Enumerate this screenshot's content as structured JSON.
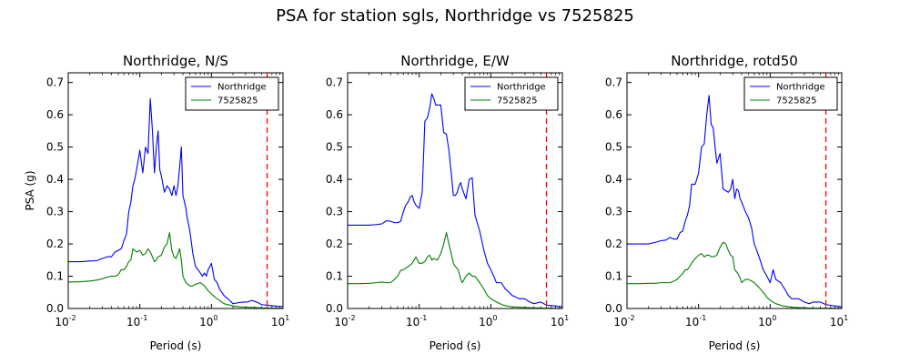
{
  "figure": {
    "title": "PSA for station sgls, Northridge vs 7525825"
  },
  "chart_data": [
    {
      "type": "line",
      "title": "Northridge, N/S",
      "xlabel": "Period (s)",
      "ylabel": "PSA (g)",
      "xscale": "log",
      "xlim": [
        0.01,
        10
      ],
      "ylim": [
        0,
        0.73
      ],
      "xticks": [
        "10",
        "10",
        "10",
        "10"
      ],
      "xtick_exponents": [
        "-2",
        "-1",
        "0",
        "1"
      ],
      "yticks": [
        "0.0",
        "0.1",
        "0.2",
        "0.3",
        "0.4",
        "0.5",
        "0.6",
        "0.7"
      ],
      "legend": "top-right",
      "vline": {
        "x": 6.0,
        "color": "#ff0000",
        "style": "dashed"
      },
      "series": [
        {
          "name": "Northridge",
          "color": "#0000ff",
          "x": [
            0.01,
            0.015,
            0.02,
            0.025,
            0.03,
            0.035,
            0.04,
            0.045,
            0.05,
            0.055,
            0.06,
            0.065,
            0.07,
            0.075,
            0.08,
            0.085,
            0.09,
            0.1,
            0.11,
            0.12,
            0.13,
            0.14,
            0.15,
            0.16,
            0.17,
            0.18,
            0.19,
            0.2,
            0.22,
            0.24,
            0.26,
            0.28,
            0.3,
            0.32,
            0.34,
            0.36,
            0.38,
            0.4,
            0.42,
            0.44,
            0.46,
            0.48,
            0.5,
            0.55,
            0.6,
            0.65,
            0.7,
            0.75,
            0.8,
            0.85,
            0.9,
            0.95,
            1.0,
            1.1,
            1.2,
            1.3,
            1.5,
            1.7,
            2.0,
            2.4,
            2.8,
            3.2,
            3.6,
            4.0,
            4.5,
            5.0,
            6.0,
            7.5,
            10.0
          ],
          "y": [
            0.145,
            0.145,
            0.147,
            0.148,
            0.155,
            0.16,
            0.16,
            0.175,
            0.18,
            0.185,
            0.21,
            0.23,
            0.3,
            0.33,
            0.38,
            0.4,
            0.43,
            0.49,
            0.42,
            0.5,
            0.48,
            0.65,
            0.55,
            0.42,
            0.5,
            0.55,
            0.43,
            0.41,
            0.36,
            0.38,
            0.37,
            0.35,
            0.38,
            0.35,
            0.38,
            0.44,
            0.5,
            0.35,
            0.33,
            0.31,
            0.28,
            0.26,
            0.24,
            0.17,
            0.13,
            0.12,
            0.11,
            0.1,
            0.11,
            0.1,
            0.12,
            0.13,
            0.14,
            0.09,
            0.08,
            0.06,
            0.04,
            0.03,
            0.015,
            0.018,
            0.02,
            0.02,
            0.025,
            0.022,
            0.018,
            0.012,
            0.01,
            0.008,
            0.006
          ]
        },
        {
          "name": "7525825",
          "color": "#008000",
          "x": [
            0.01,
            0.015,
            0.02,
            0.025,
            0.03,
            0.035,
            0.04,
            0.045,
            0.05,
            0.055,
            0.06,
            0.065,
            0.07,
            0.075,
            0.08,
            0.09,
            0.1,
            0.11,
            0.12,
            0.13,
            0.14,
            0.15,
            0.16,
            0.17,
            0.18,
            0.2,
            0.22,
            0.24,
            0.26,
            0.28,
            0.3,
            0.32,
            0.34,
            0.36,
            0.38,
            0.4,
            0.44,
            0.5,
            0.55,
            0.6,
            0.7,
            0.8,
            0.9,
            1.0,
            1.2,
            1.5,
            2.0,
            2.5,
            3.0,
            4.0,
            5.0,
            7.0,
            10.0
          ],
          "y": [
            0.082,
            0.083,
            0.085,
            0.088,
            0.092,
            0.097,
            0.1,
            0.1,
            0.105,
            0.12,
            0.12,
            0.13,
            0.145,
            0.15,
            0.185,
            0.175,
            0.18,
            0.165,
            0.17,
            0.185,
            0.175,
            0.16,
            0.145,
            0.15,
            0.16,
            0.165,
            0.19,
            0.2,
            0.235,
            0.18,
            0.16,
            0.155,
            0.17,
            0.185,
            0.15,
            0.1,
            0.08,
            0.07,
            0.07,
            0.075,
            0.08,
            0.07,
            0.055,
            0.045,
            0.03,
            0.015,
            0.008,
            0.005,
            0.004,
            0.003,
            0.002,
            0.001,
            0.001
          ]
        }
      ]
    },
    {
      "type": "line",
      "title": "Northridge, E/W",
      "xlabel": "Period (s)",
      "ylabel": "",
      "xscale": "log",
      "xlim": [
        0.01,
        10
      ],
      "ylim": [
        0,
        0.73
      ],
      "xticks": [
        "10",
        "10",
        "10",
        "10"
      ],
      "xtick_exponents": [
        "-2",
        "-1",
        "0",
        "1"
      ],
      "yticks": [
        "0.0",
        "0.1",
        "0.2",
        "0.3",
        "0.4",
        "0.5",
        "0.6",
        "0.7"
      ],
      "legend": "top-right",
      "vline": {
        "x": 6.0,
        "color": "#ff0000",
        "style": "dashed"
      },
      "series": [
        {
          "name": "Northridge",
          "color": "#0000ff",
          "x": [
            0.01,
            0.015,
            0.02,
            0.025,
            0.03,
            0.035,
            0.04,
            0.045,
            0.05,
            0.055,
            0.06,
            0.065,
            0.07,
            0.075,
            0.08,
            0.085,
            0.09,
            0.1,
            0.11,
            0.12,
            0.13,
            0.14,
            0.15,
            0.16,
            0.17,
            0.18,
            0.2,
            0.22,
            0.24,
            0.26,
            0.28,
            0.3,
            0.32,
            0.34,
            0.36,
            0.38,
            0.4,
            0.45,
            0.5,
            0.55,
            0.6,
            0.7,
            0.8,
            0.9,
            1.0,
            1.1,
            1.2,
            1.4,
            1.6,
            1.8,
            2.0,
            2.5,
            3.0,
            3.5,
            4.0,
            5.0,
            6.0,
            8.0,
            10.0
          ],
          "y": [
            0.258,
            0.258,
            0.258,
            0.26,
            0.262,
            0.272,
            0.27,
            0.266,
            0.266,
            0.27,
            0.3,
            0.32,
            0.33,
            0.345,
            0.35,
            0.33,
            0.32,
            0.31,
            0.36,
            0.58,
            0.59,
            0.62,
            0.665,
            0.65,
            0.63,
            0.63,
            0.63,
            0.545,
            0.54,
            0.49,
            0.42,
            0.35,
            0.35,
            0.36,
            0.38,
            0.39,
            0.37,
            0.34,
            0.4,
            0.405,
            0.29,
            0.24,
            0.18,
            0.14,
            0.12,
            0.1,
            0.08,
            0.08,
            0.06,
            0.05,
            0.04,
            0.03,
            0.03,
            0.02,
            0.015,
            0.02,
            0.01,
            0.008,
            0.005
          ]
        },
        {
          "name": "7525825",
          "color": "#008000",
          "x": [
            0.01,
            0.015,
            0.02,
            0.025,
            0.03,
            0.035,
            0.04,
            0.045,
            0.05,
            0.055,
            0.06,
            0.065,
            0.07,
            0.08,
            0.09,
            0.1,
            0.11,
            0.12,
            0.13,
            0.14,
            0.15,
            0.16,
            0.18,
            0.2,
            0.22,
            0.24,
            0.26,
            0.28,
            0.3,
            0.32,
            0.35,
            0.38,
            0.4,
            0.45,
            0.5,
            0.55,
            0.6,
            0.7,
            0.8,
            0.9,
            1.0,
            1.2,
            1.5,
            2.0,
            3.0,
            4.0,
            6.0,
            10.0
          ],
          "y": [
            0.077,
            0.077,
            0.078,
            0.08,
            0.082,
            0.08,
            0.08,
            0.09,
            0.1,
            0.118,
            0.12,
            0.125,
            0.13,
            0.14,
            0.16,
            0.14,
            0.14,
            0.145,
            0.16,
            0.165,
            0.15,
            0.155,
            0.15,
            0.17,
            0.2,
            0.235,
            0.2,
            0.17,
            0.14,
            0.13,
            0.12,
            0.09,
            0.08,
            0.1,
            0.11,
            0.1,
            0.1,
            0.08,
            0.06,
            0.04,
            0.03,
            0.02,
            0.01,
            0.005,
            0.003,
            0.002,
            0.001,
            0.001
          ]
        }
      ]
    },
    {
      "type": "line",
      "title": "Northridge, rotd50",
      "xlabel": "Period (s)",
      "ylabel": "",
      "xscale": "log",
      "xlim": [
        0.01,
        10
      ],
      "ylim": [
        0,
        0.73
      ],
      "xticks": [
        "10",
        "10",
        "10",
        "10"
      ],
      "xtick_exponents": [
        "-2",
        "-1",
        "0",
        "1"
      ],
      "yticks": [
        "0.0",
        "0.1",
        "0.2",
        "0.3",
        "0.4",
        "0.5",
        "0.6",
        "0.7"
      ],
      "legend": "top-right",
      "vline": {
        "x": 6.0,
        "color": "#ff0000",
        "style": "dashed"
      },
      "series": [
        {
          "name": "Northridge",
          "color": "#0000ff",
          "x": [
            0.01,
            0.015,
            0.02,
            0.025,
            0.03,
            0.035,
            0.04,
            0.045,
            0.05,
            0.055,
            0.06,
            0.065,
            0.07,
            0.075,
            0.08,
            0.085,
            0.09,
            0.1,
            0.11,
            0.12,
            0.13,
            0.14,
            0.15,
            0.16,
            0.17,
            0.18,
            0.2,
            0.22,
            0.24,
            0.26,
            0.28,
            0.3,
            0.32,
            0.34,
            0.36,
            0.38,
            0.4,
            0.45,
            0.5,
            0.55,
            0.6,
            0.7,
            0.8,
            0.9,
            1.0,
            1.1,
            1.2,
            1.4,
            1.6,
            1.8,
            2.0,
            2.5,
            3.0,
            3.5,
            4.0,
            5.0,
            6.0,
            8.0,
            10.0
          ],
          "y": [
            0.2,
            0.2,
            0.2,
            0.205,
            0.21,
            0.212,
            0.22,
            0.215,
            0.215,
            0.235,
            0.24,
            0.27,
            0.29,
            0.32,
            0.385,
            0.385,
            0.385,
            0.42,
            0.5,
            0.51,
            0.6,
            0.66,
            0.57,
            0.56,
            0.5,
            0.45,
            0.48,
            0.37,
            0.365,
            0.36,
            0.37,
            0.4,
            0.34,
            0.37,
            0.365,
            0.34,
            0.33,
            0.3,
            0.28,
            0.25,
            0.2,
            0.16,
            0.12,
            0.1,
            0.08,
            0.12,
            0.09,
            0.08,
            0.06,
            0.04,
            0.03,
            0.03,
            0.02,
            0.015,
            0.02,
            0.02,
            0.012,
            0.008,
            0.005
          ]
        },
        {
          "name": "7525825",
          "color": "#008000",
          "x": [
            0.01,
            0.015,
            0.02,
            0.025,
            0.03,
            0.035,
            0.04,
            0.045,
            0.05,
            0.055,
            0.06,
            0.065,
            0.07,
            0.075,
            0.08,
            0.09,
            0.1,
            0.11,
            0.12,
            0.13,
            0.14,
            0.15,
            0.16,
            0.18,
            0.2,
            0.22,
            0.24,
            0.26,
            0.28,
            0.3,
            0.32,
            0.35,
            0.38,
            0.4,
            0.45,
            0.5,
            0.55,
            0.6,
            0.7,
            0.8,
            0.9,
            1.0,
            1.2,
            1.5,
            2.0,
            3.0,
            4.0,
            6.0,
            10.0
          ],
          "y": [
            0.077,
            0.077,
            0.078,
            0.078,
            0.08,
            0.08,
            0.08,
            0.085,
            0.09,
            0.1,
            0.108,
            0.12,
            0.12,
            0.13,
            0.14,
            0.155,
            0.165,
            0.17,
            0.16,
            0.165,
            0.165,
            0.16,
            0.16,
            0.165,
            0.19,
            0.205,
            0.2,
            0.18,
            0.165,
            0.16,
            0.12,
            0.11,
            0.095,
            0.08,
            0.09,
            0.09,
            0.085,
            0.08,
            0.065,
            0.05,
            0.035,
            0.025,
            0.015,
            0.008,
            0.004,
            0.002,
            0.001,
            0.001,
            0.001
          ]
        }
      ]
    }
  ]
}
